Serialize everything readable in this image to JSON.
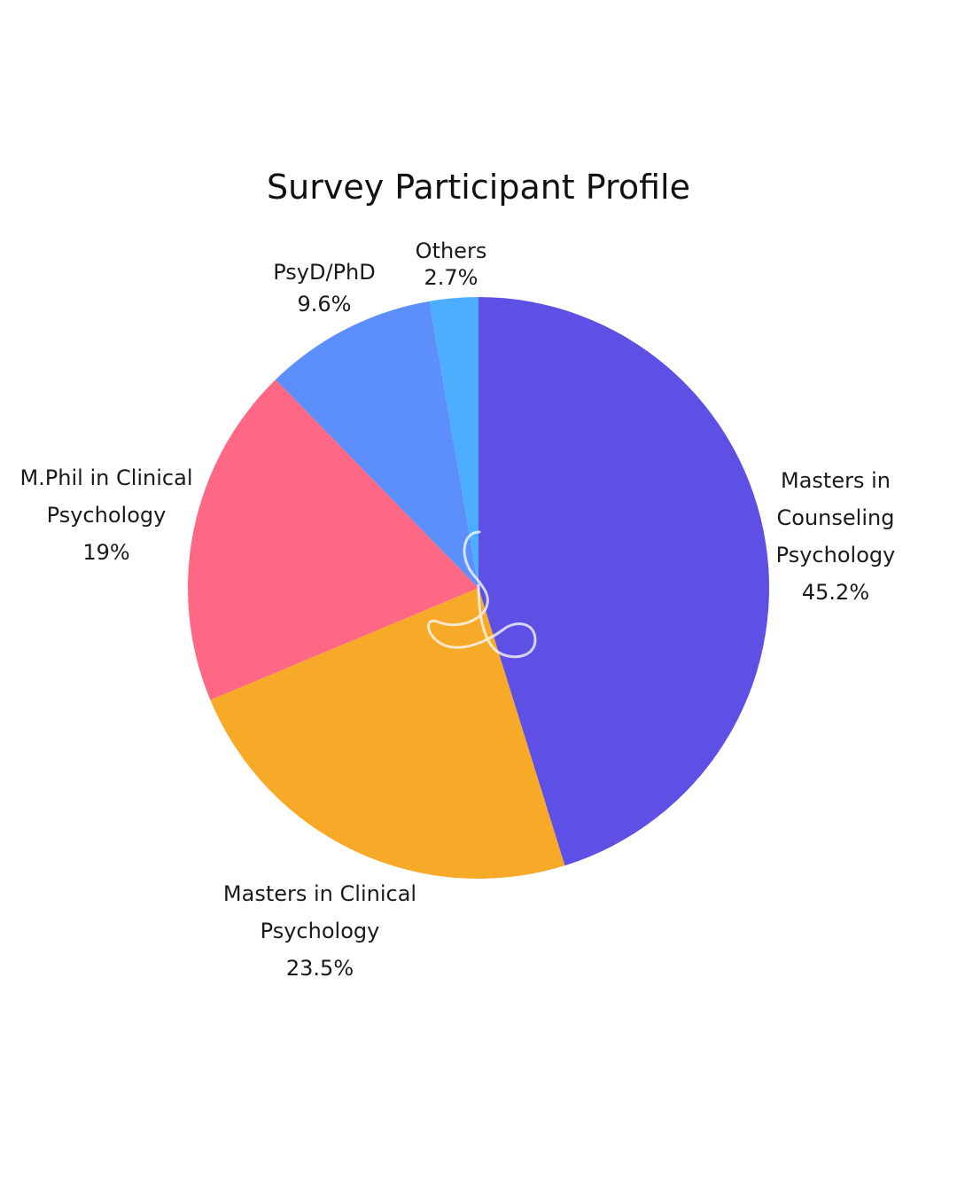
{
  "chart_data": {
    "type": "pie",
    "title": "Survey Participant Profile",
    "start": "top",
    "direction": "clockwise",
    "slices": [
      {
        "label_lines": [
          "Masters in",
          "Counseling",
          "Psychology"
        ],
        "value_label": "45.2%",
        "value": 45.2,
        "color": "#5E50E4"
      },
      {
        "label_lines": [
          "Masters in Clinical",
          "Psychology"
        ],
        "value_label": "23.5%",
        "value": 23.5,
        "color": "#F7A928"
      },
      {
        "label_lines": [
          "M.Phil in Clinical",
          "Psychology"
        ],
        "value_label": "19%",
        "value": 19,
        "color": "#FF6884"
      },
      {
        "label_lines": [
          "PsyD/PhD"
        ],
        "value_label": "9.6%",
        "value": 9.6,
        "color": "#5C8FFC"
      },
      {
        "label_lines": [
          "Others"
        ],
        "value_label": "2.7%",
        "value": 2.7,
        "color": "#4DAEFF"
      }
    ]
  }
}
